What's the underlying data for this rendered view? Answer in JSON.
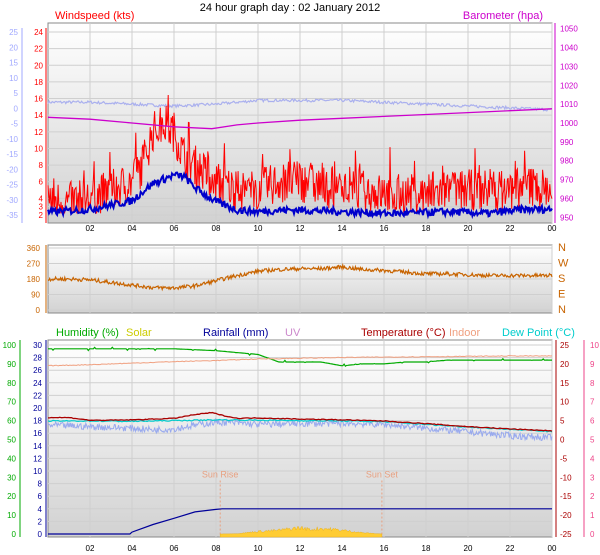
{
  "page_title": "24 hour graph day : 02 January 2012",
  "colors": {
    "gust": "#ff0000",
    "wind": "#0000cc",
    "baro": "#cc00cc",
    "windLeftAxis": "#a0a8ff",
    "dir": "#c86400",
    "humidity": "#00aa00",
    "solar": "#cccc00",
    "rain": "#000099",
    "uv": "#cc88cc",
    "temp": "#aa0000",
    "indoor": "#f0a080",
    "dew": "#00cccc",
    "appTemp": "#99aaee"
  },
  "chart_data": [
    {
      "type": "line",
      "name": "wind_baro",
      "left_title": "Windspeed (kts)",
      "right_title": "Barometer (hpa)",
      "x_ticks": [
        "02",
        "04",
        "06",
        "08",
        "10",
        "12",
        "14",
        "16",
        "18",
        "20",
        "22",
        "00"
      ],
      "y_ticks_left": [
        "2",
        "3",
        "4",
        "6",
        "8",
        "10",
        "12",
        "14",
        "16",
        "18",
        "20",
        "22",
        "24"
      ],
      "y_ticks_leftmost": [
        "-35",
        "-30",
        "-25",
        "-20",
        "-15",
        "-10",
        "-5",
        "0",
        "5",
        "10",
        "15",
        "20",
        "25"
      ],
      "y_ticks_right": [
        "950",
        "960",
        "970",
        "980",
        "990",
        "1000",
        "1010",
        "1020",
        "1030",
        "1040",
        "1050"
      ],
      "ylim_right": [
        947,
        1053
      ],
      "series": [
        {
          "key": "gust",
          "x": [
            0,
            1,
            2,
            3,
            4,
            4.5,
            5,
            5.5,
            6,
            6.5,
            7,
            7.5,
            8,
            9,
            10,
            11,
            12,
            13,
            14,
            15,
            16,
            17,
            18,
            19,
            20,
            21,
            22,
            23,
            24
          ],
          "values": [
            4,
            3.5,
            4,
            5,
            6,
            8,
            12,
            13,
            12,
            9,
            8,
            7,
            6,
            5,
            5,
            6,
            6,
            5.5,
            5,
            5,
            4.5,
            4.5,
            4.5,
            5,
            5,
            5,
            5,
            5.5,
            5
          ]
        },
        {
          "key": "wind",
          "x": [
            0,
            1,
            2,
            3,
            4,
            4.5,
            5,
            5.5,
            6,
            6.5,
            7,
            7.5,
            8,
            9,
            10,
            11,
            12,
            13,
            14,
            15,
            16,
            17,
            18,
            19,
            20,
            21,
            22,
            23,
            24
          ],
          "values": [
            2.3,
            2.5,
            2.7,
            3.2,
            3.7,
            4.8,
            5.8,
            6.3,
            6.8,
            6.6,
            5.3,
            4.4,
            3.6,
            2.6,
            2.4,
            2.6,
            2.6,
            2.5,
            2.4,
            2.3,
            2.2,
            2.2,
            2.3,
            2.4,
            2.3,
            2.2,
            2.5,
            2.7,
            2.7
          ]
        },
        {
          "key": "baro",
          "axis": "right",
          "x": [
            0,
            2,
            4,
            6,
            7.8,
            9,
            10,
            12,
            14,
            16,
            18,
            20,
            22,
            24
          ],
          "values": [
            1003,
            1002,
            1000,
            998,
            997,
            999,
            1000,
            1001.5,
            1002.5,
            1003.5,
            1004.5,
            1005.5,
            1006.5,
            1007.5
          ]
        },
        {
          "key": "baroLight",
          "axis": "right",
          "x": [
            0,
            2,
            4,
            6,
            8,
            10,
            12,
            14,
            16,
            18,
            20,
            22,
            24
          ],
          "values": [
            1011,
            1011,
            1010,
            1009,
            1010,
            1012,
            1012,
            1012,
            1011,
            1010,
            1009,
            1008,
            1007
          ]
        }
      ]
    },
    {
      "type": "line",
      "name": "wind_direction",
      "x_ticks": [
        "02",
        "04",
        "06",
        "08",
        "10",
        "12",
        "14",
        "16",
        "18",
        "20",
        "22",
        "00"
      ],
      "y_ticks_left": [
        "0",
        "90",
        "180",
        "270",
        "360"
      ],
      "y_ticks_right": [
        "N",
        "E",
        "S",
        "W",
        "N"
      ],
      "ylim": [
        0,
        360
      ],
      "series": [
        {
          "key": "dir",
          "x": [
            0,
            1,
            2,
            3,
            4,
            5,
            6,
            7,
            8,
            9,
            10,
            11,
            12,
            13,
            14,
            15,
            16,
            17,
            18,
            19,
            20,
            21,
            22,
            23,
            24
          ],
          "values": [
            180,
            180,
            175,
            160,
            145,
            130,
            128,
            140,
            170,
            200,
            225,
            235,
            240,
            240,
            250,
            235,
            230,
            220,
            210,
            210,
            205,
            200,
            200,
            200,
            200
          ]
        }
      ]
    },
    {
      "type": "line",
      "name": "weather",
      "labels": {
        "humidity": "Humidity (%)",
        "solar": "Solar",
        "rainfall": "Rainfall (mm)",
        "uv": "UV",
        "temperature": "Temperature (°C)",
        "indoor": "Indoor",
        "dew": "Dew Point (°C)"
      },
      "x_ticks": [
        "02",
        "04",
        "06",
        "08",
        "10",
        "12",
        "14",
        "16",
        "18",
        "20",
        "22",
        "00"
      ],
      "y_ticks_humidity": [
        "0",
        "10",
        "20",
        "30",
        "40",
        "50",
        "60",
        "70",
        "80",
        "90",
        "100"
      ],
      "y_ticks_rain": [
        "0",
        "2",
        "4",
        "6",
        "8",
        "10",
        "12",
        "14",
        "16",
        "18",
        "20",
        "22",
        "24",
        "26",
        "28",
        "30"
      ],
      "y_ticks_temp": [
        "-25",
        "-20",
        "-15",
        "-10",
        "-5",
        "0",
        "5",
        "10",
        "15",
        "20",
        "25"
      ],
      "y_ticks_uv": [
        "0",
        "1",
        "2",
        "3",
        "4",
        "5",
        "6",
        "7",
        "8",
        "9",
        "10"
      ],
      "annotations": [
        {
          "key": "sunrise",
          "label": "Sun Rise",
          "x": 8.2
        },
        {
          "key": "sunset",
          "label": "Sun Set",
          "x": 15.9
        }
      ],
      "series": [
        {
          "key": "humidity",
          "axis": "humidity",
          "x": [
            0,
            2,
            4,
            6,
            8,
            10,
            11,
            12,
            13,
            14,
            15,
            16,
            17,
            18,
            19,
            20,
            21,
            22,
            23,
            24
          ],
          "values": [
            98,
            98,
            98,
            98,
            97,
            95,
            91,
            91,
            91,
            89,
            90,
            90,
            91,
            91,
            92,
            92,
            92,
            92,
            92,
            92
          ]
        },
        {
          "key": "rain",
          "axis": "rain",
          "x": [
            0,
            1,
            2,
            3,
            3.9,
            4,
            5,
            6,
            7,
            8,
            8.3,
            24
          ],
          "values": [
            0,
            0,
            0,
            0,
            0,
            0.3,
            1.5,
            2.5,
            3.5,
            3.9,
            4,
            4
          ]
        },
        {
          "key": "temp",
          "axis": "temp",
          "x": [
            0,
            1,
            2,
            3,
            4,
            5,
            6,
            7,
            7.8,
            8.3,
            9,
            10,
            12,
            14,
            16,
            18,
            20,
            22,
            24
          ],
          "values": [
            5.8,
            5.8,
            5.1,
            5.1,
            5.2,
            5.4,
            5.6,
            6.6,
            7.1,
            6.4,
            5.6,
            5.7,
            5.4,
            5.2,
            4.9,
            4.2,
            3.4,
            2.8,
            2.3
          ]
        },
        {
          "key": "indoor",
          "axis": "temp",
          "x": [
            0,
            2,
            4,
            6,
            8,
            10,
            12,
            14,
            16,
            18,
            20,
            22,
            24
          ],
          "values": [
            19.5,
            19.8,
            20.2,
            20.6,
            20.9,
            21.3,
            21.5,
            21.7,
            21.8,
            21.9,
            22.0,
            22.1,
            22.1
          ]
        },
        {
          "key": "dew",
          "axis": "temp",
          "x": [
            0,
            2,
            4,
            6,
            8,
            10,
            12,
            14,
            16,
            18,
            20,
            22,
            24
          ],
          "values": [
            4.9,
            4.9,
            4.8,
            5.0,
            5.2,
            5.1,
            5.0,
            4.9,
            4.7,
            4.0,
            3.3,
            2.7,
            2.1
          ]
        },
        {
          "key": "appTemp",
          "axis": "temp",
          "x": [
            0,
            2,
            4,
            5,
            6,
            7,
            8,
            9,
            10,
            12,
            14,
            16,
            18,
            20,
            22,
            24
          ],
          "values": [
            3.8,
            3.4,
            3.0,
            2.6,
            2.8,
            3.8,
            4.6,
            4.4,
            4.0,
            4.2,
            4.3,
            4.0,
            3.0,
            2.0,
            1.0,
            0.5
          ]
        },
        {
          "key": "solar",
          "axis": "rain",
          "x": [
            8.2,
            9,
            10,
            11,
            12,
            12.5,
            13,
            14,
            15,
            15.9
          ],
          "values": [
            0,
            0.05,
            0.4,
            0.6,
            1.0,
            0.7,
            0.9,
            0.6,
            0.2,
            0
          ]
        }
      ]
    }
  ]
}
